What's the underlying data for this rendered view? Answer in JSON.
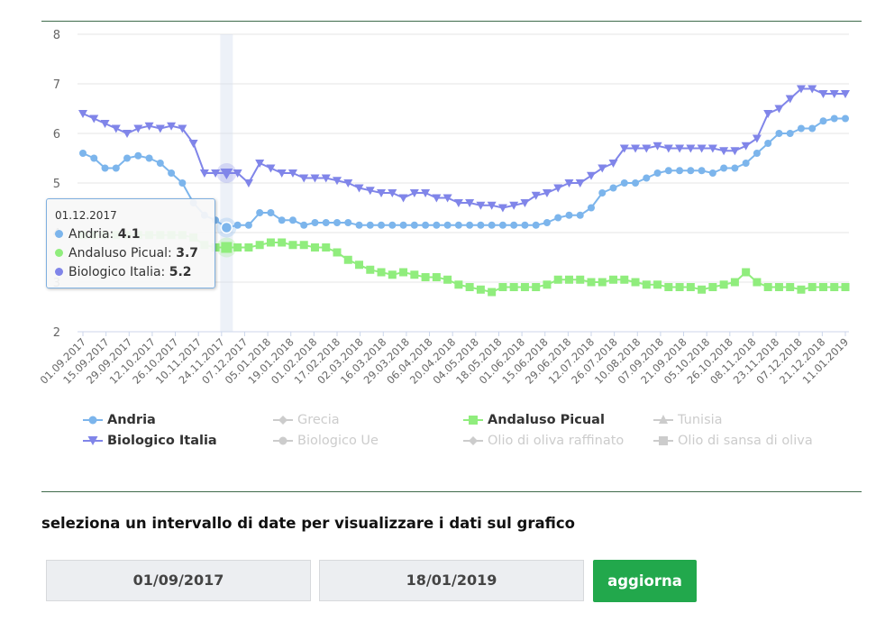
{
  "chart_data": {
    "type": "line",
    "yticks": [
      2,
      3,
      4,
      5,
      6,
      7,
      8
    ],
    "ylim": [
      2,
      8
    ],
    "grid": true,
    "xtick_labels": [
      "01.09.2017",
      "15.09.2017",
      "29.09.2017",
      "12.10.2017",
      "26.10.2017",
      "10.11.2017",
      "24.11.2017",
      "07.12.2017",
      "05.01.2018",
      "19.01.2018",
      "01.02.2018",
      "17.02.2018",
      "02.03.2018",
      "16.03.2018",
      "29.03.2018",
      "06.04.2018",
      "20.04.2018",
      "04.05.2018",
      "18.05.2018",
      "01.06.2018",
      "15.06.2018",
      "29.06.2018",
      "12.07.2018",
      "26.07.2018",
      "10.08.2018",
      "07.09.2018",
      "21.09.2018",
      "05.10.2018",
      "26.10.2018",
      "08.11.2018",
      "23.11.2018",
      "07.12.2018",
      "21.12.2018",
      "11.01.2019"
    ],
    "highlight_index": 13,
    "series": [
      {
        "name": "Andria",
        "color": "#7cb5ec",
        "marker": "circle",
        "values": [
          5.6,
          5.5,
          5.3,
          5.3,
          5.5,
          5.55,
          5.5,
          5.4,
          5.2,
          5.0,
          4.6,
          4.35,
          4.25,
          4.1,
          4.15,
          4.15,
          4.4,
          4.4,
          4.25,
          4.25,
          4.15,
          4.2,
          4.2,
          4.2,
          4.2,
          4.15,
          4.15,
          4.15,
          4.15,
          4.15,
          4.15,
          4.15,
          4.15,
          4.15,
          4.15,
          4.15,
          4.15,
          4.15,
          4.15,
          4.15,
          4.15,
          4.15,
          4.2,
          4.3,
          4.35,
          4.35,
          4.5,
          4.8,
          4.9,
          5.0,
          5.0,
          5.1,
          5.2,
          5.25,
          5.25,
          5.25,
          5.25,
          5.2,
          5.3,
          5.3,
          5.4,
          5.6,
          5.8,
          6.0,
          6.0,
          6.1,
          6.1,
          6.25,
          6.3,
          6.3
        ]
      },
      {
        "name": "Andaluso Picual",
        "color": "#90ed7d",
        "marker": "square",
        "values": [
          3.95,
          3.95,
          3.95,
          3.95,
          3.95,
          3.95,
          3.95,
          3.95,
          3.95,
          3.95,
          3.9,
          3.75,
          3.7,
          3.7,
          3.7,
          3.7,
          3.75,
          3.8,
          3.8,
          3.75,
          3.75,
          3.7,
          3.7,
          3.6,
          3.45,
          3.35,
          3.25,
          3.2,
          3.15,
          3.2,
          3.15,
          3.1,
          3.1,
          3.05,
          2.95,
          2.9,
          2.85,
          2.8,
          2.9,
          2.9,
          2.9,
          2.9,
          2.95,
          3.05,
          3.05,
          3.05,
          3.0,
          3.0,
          3.05,
          3.05,
          3.0,
          2.95,
          2.95,
          2.9,
          2.9,
          2.9,
          2.85,
          2.9,
          2.95,
          3.0,
          3.2,
          3.0,
          2.9,
          2.9,
          2.9,
          2.85,
          2.9,
          2.9,
          2.9,
          2.9
        ]
      },
      {
        "name": "Biologico Italia",
        "color": "#8085e9",
        "marker": "triangle-down",
        "values": [
          6.4,
          6.3,
          6.2,
          6.1,
          6.0,
          6.1,
          6.15,
          6.1,
          6.15,
          6.1,
          5.8,
          5.2,
          5.2,
          5.2,
          5.2,
          5.0,
          5.4,
          5.3,
          5.2,
          5.2,
          5.1,
          5.1,
          5.1,
          5.05,
          5.0,
          4.9,
          4.85,
          4.8,
          4.8,
          4.7,
          4.8,
          4.8,
          4.7,
          4.7,
          4.6,
          4.6,
          4.55,
          4.55,
          4.5,
          4.55,
          4.6,
          4.75,
          4.8,
          4.9,
          5.0,
          5.0,
          5.15,
          5.3,
          5.4,
          5.7,
          5.7,
          5.7,
          5.75,
          5.7,
          5.7,
          5.7,
          5.7,
          5.7,
          5.65,
          5.65,
          5.75,
          5.9,
          6.4,
          6.5,
          6.7,
          6.9,
          6.9,
          6.8,
          6.8,
          6.8
        ]
      }
    ]
  },
  "tooltip": {
    "date": "01.12.2017",
    "rows": [
      {
        "label": "Andria:",
        "value": "4.1",
        "color": "#7cb5ec"
      },
      {
        "label": "Andaluso Picual:",
        "value": "3.7",
        "color": "#90ed7d"
      },
      {
        "label": "Biologico Italia:",
        "value": "5.2",
        "color": "#8085e9"
      }
    ]
  },
  "legend": [
    {
      "name": "Andria",
      "active": true,
      "color": "#7cb5ec",
      "symbol": "circle"
    },
    {
      "name": "Grecia",
      "active": false,
      "color": "#cccccc",
      "symbol": "diamond"
    },
    {
      "name": "Andaluso Picual",
      "active": true,
      "color": "#90ed7d",
      "symbol": "square"
    },
    {
      "name": "Tunisia",
      "active": false,
      "color": "#cccccc",
      "symbol": "triangle"
    },
    {
      "name": "Biologico Italia",
      "active": true,
      "color": "#8085e9",
      "symbol": "triangle-down"
    },
    {
      "name": "Biologico Ue",
      "active": false,
      "color": "#cccccc",
      "symbol": "circle"
    },
    {
      "name": "Olio di oliva raffinato",
      "active": false,
      "color": "#cccccc",
      "symbol": "diamond"
    },
    {
      "name": "Olio di sansa di oliva",
      "active": false,
      "color": "#cccccc",
      "symbol": "square"
    }
  ],
  "range": {
    "label": "seleziona un intervallo di date per visualizzare i dati sul grafico",
    "start": "01/09/2017",
    "end": "18/01/2019",
    "button": "aggiorna"
  }
}
